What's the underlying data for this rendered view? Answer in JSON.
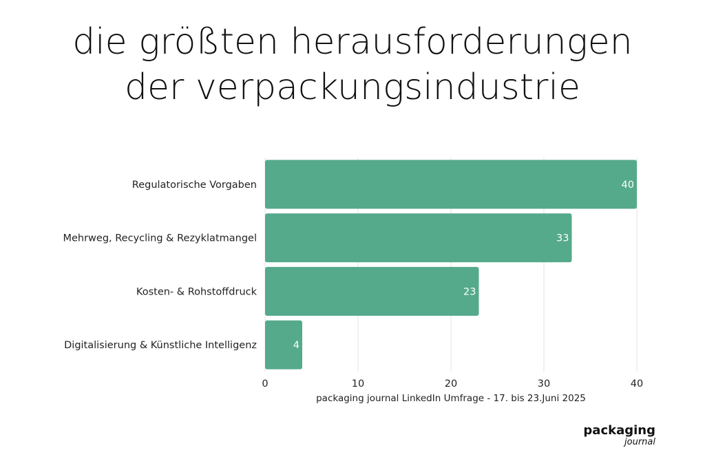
{
  "title_line1": "die größten herausforderungen",
  "title_line2": "der verpackungsindustrie",
  "brand": {
    "name": "packaging",
    "sub": "journal"
  },
  "chart_data": {
    "type": "bar",
    "orientation": "horizontal",
    "categories": [
      "Regulatorische Vorgaben",
      "Mehrweg, Recycling & Rezyklatmangel",
      "Kosten- & Rohstoffdruck",
      "Digitalisierung & Künstliche Intelligenz"
    ],
    "values": [
      40,
      33,
      23,
      4
    ],
    "xlabel": "packaging journal LinkedIn Umfrage - 17. bis 23.Juni 2025",
    "ylabel": "",
    "xlim": [
      0,
      40
    ],
    "xticks": [
      0,
      10,
      20,
      30,
      40
    ],
    "grid": "vertical",
    "data_labels": true,
    "bar_color": "#55aa8c",
    "grid_color": "#e3e3e3"
  }
}
